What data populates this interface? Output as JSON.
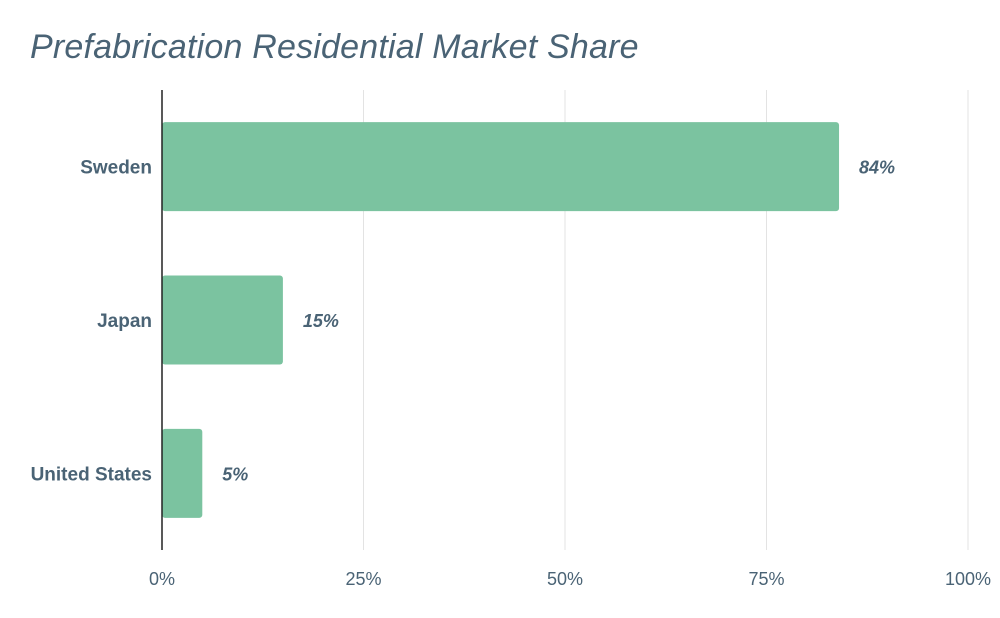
{
  "chart_data": {
    "type": "bar",
    "orientation": "horizontal",
    "title": "Prefabrication Residential Market Share",
    "categories": [
      "Sweden",
      "Japan",
      "United States"
    ],
    "values": [
      84,
      15,
      5
    ],
    "value_labels": [
      "84%",
      "15%",
      "5%"
    ],
    "x_ticks": [
      0,
      25,
      50,
      75,
      100
    ],
    "x_tick_labels": [
      "0%",
      "25%",
      "50%",
      "75%",
      "100%"
    ],
    "xlim": [
      0,
      100
    ],
    "grid": true,
    "legend": "none"
  },
  "colors": {
    "bar": "#7bc3a0",
    "text": "#4a6375",
    "grid": "#e3e3e3",
    "axis": "#222222"
  }
}
